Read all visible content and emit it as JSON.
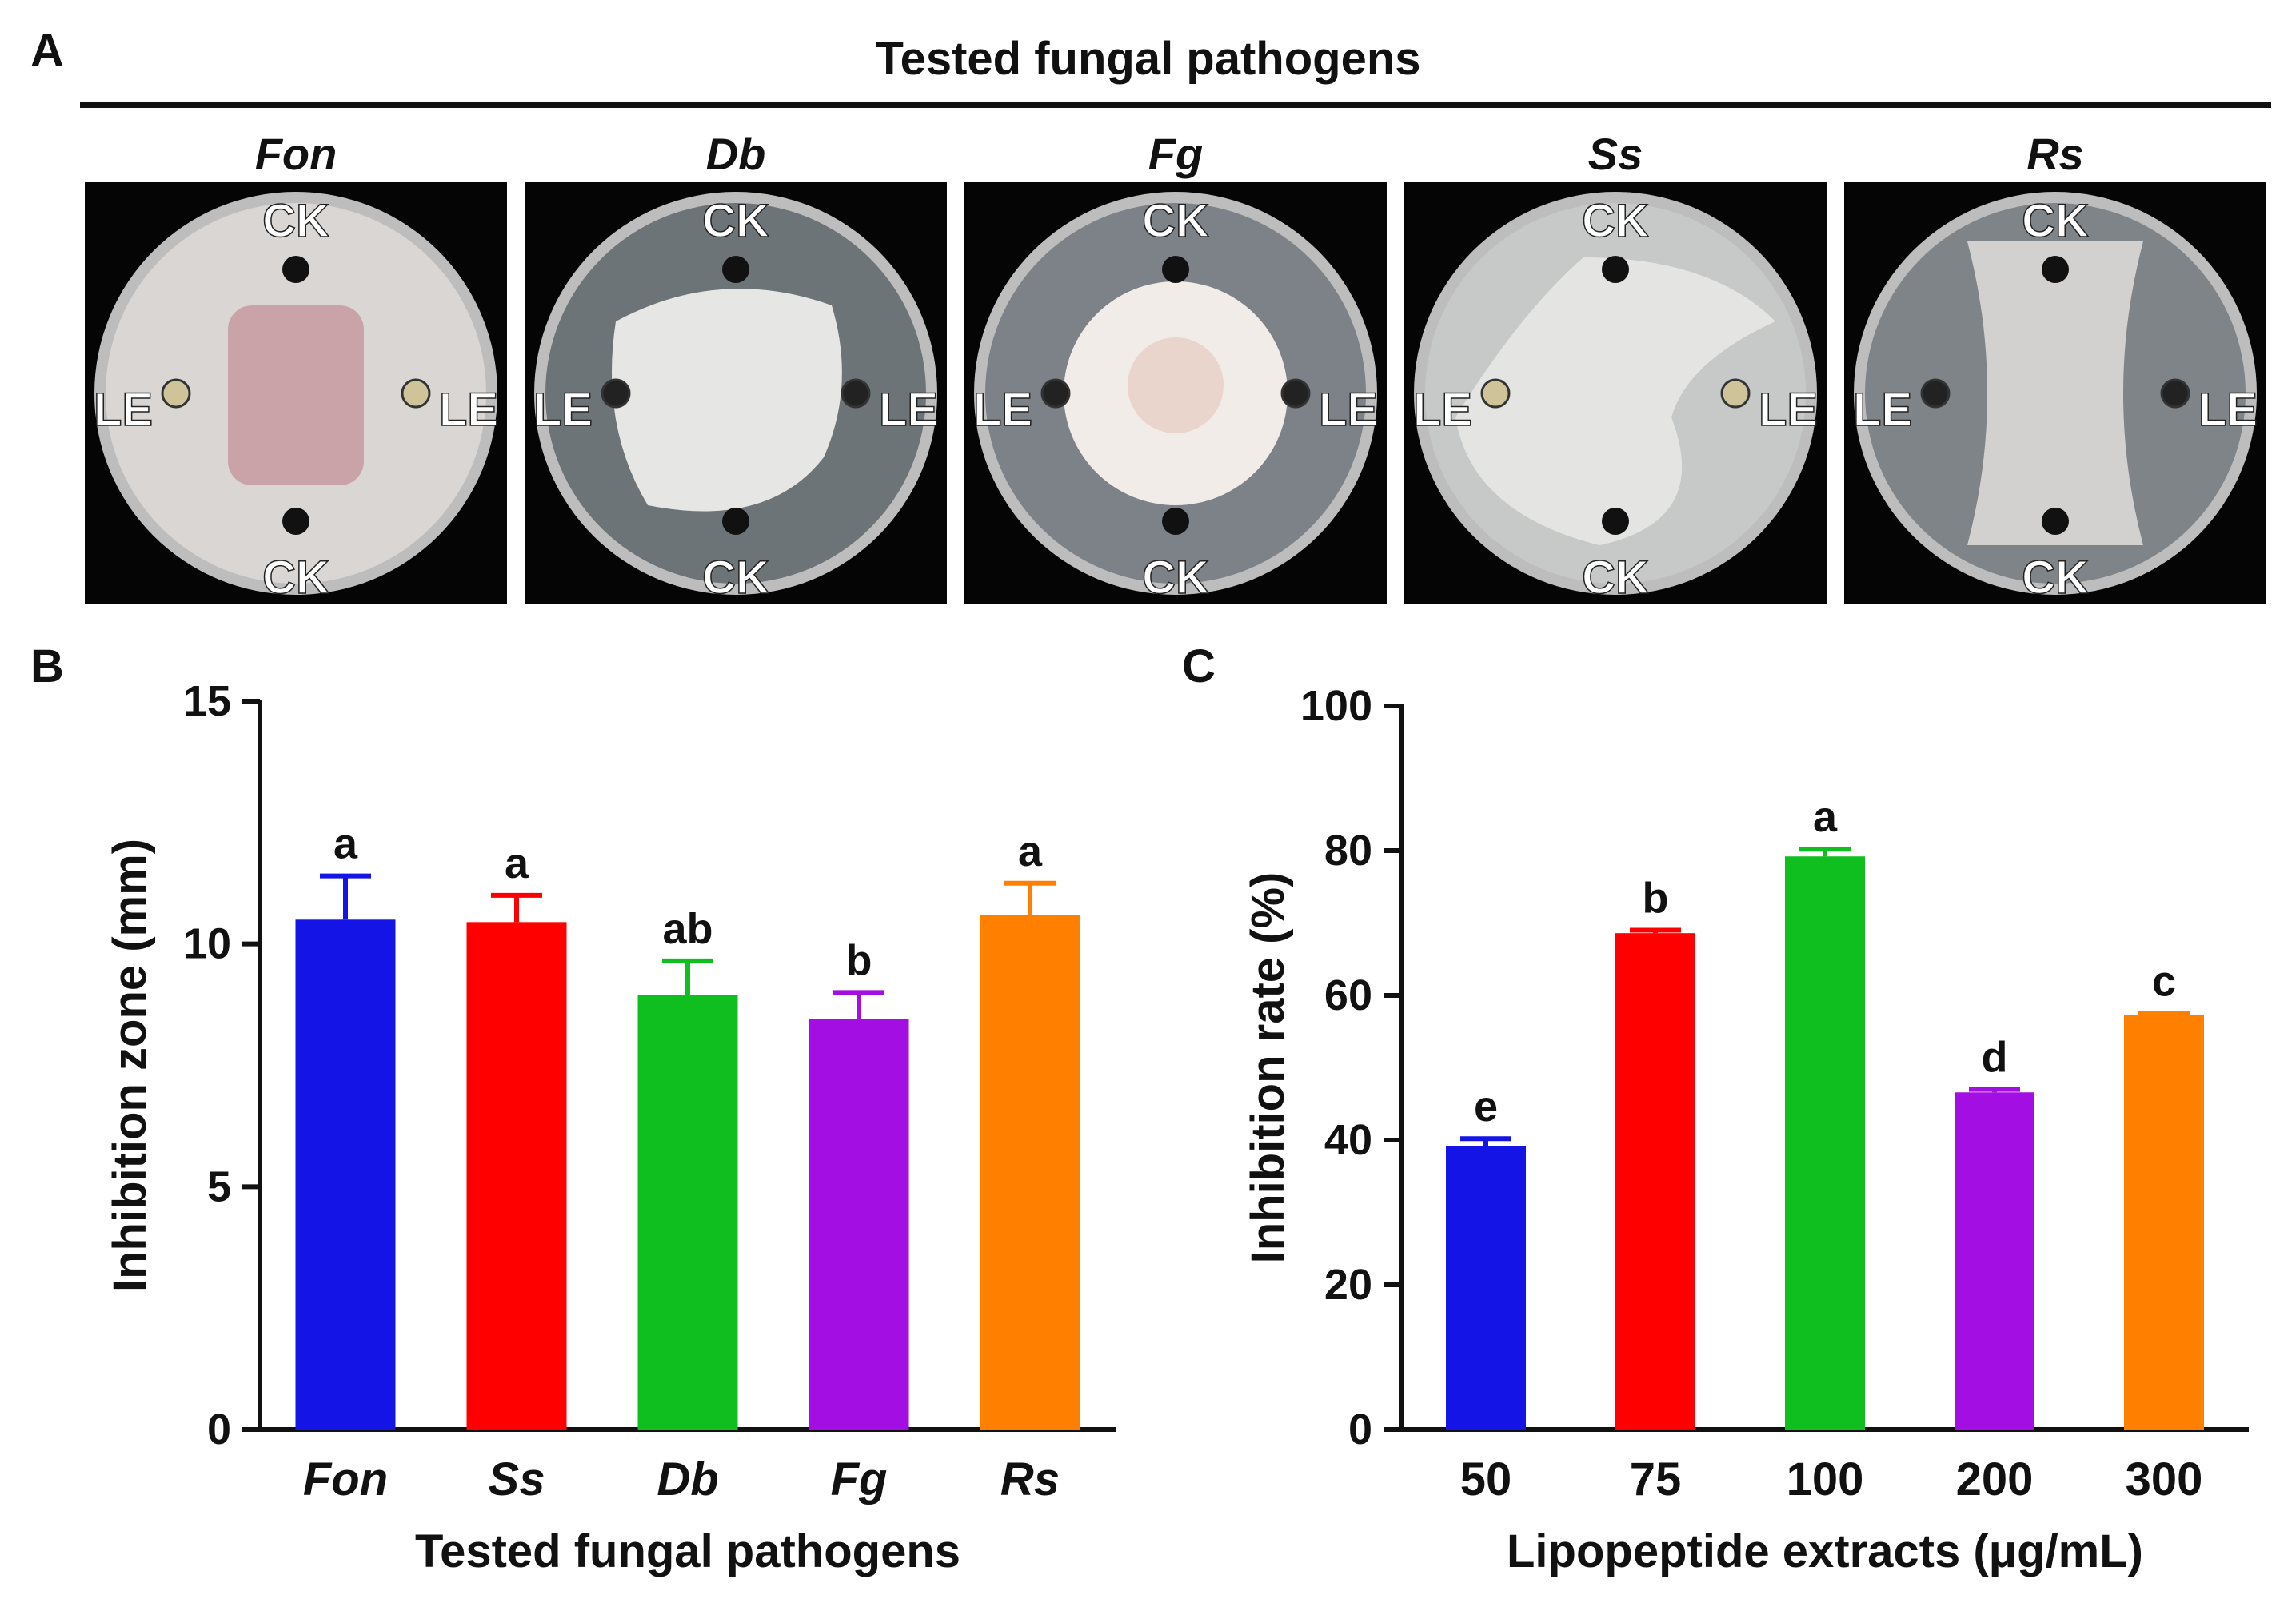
{
  "panel_a": {
    "letter": "A",
    "title": "Tested fungal pathogens",
    "plates": [
      {
        "name": "Fon",
        "top_label": "CK",
        "bottom_label": "CK",
        "left_label": "LE",
        "right_label": "LE",
        "agar_color": "#d9d6d4",
        "colony_color": "#c9a3a8",
        "colony_shape": "rect"
      },
      {
        "name": "Db",
        "top_label": "CK",
        "bottom_label": "CK",
        "left_label": "LE",
        "right_label": "LE",
        "agar_color": "#6d7478",
        "colony_color": "#e6e6e4",
        "colony_shape": "blob"
      },
      {
        "name": "Fg",
        "top_label": "CK",
        "bottom_label": "CK",
        "left_label": "LE",
        "right_label": "LE",
        "agar_color": "#7c8287",
        "colony_color": "#f1ece8",
        "colony_shape": "round"
      },
      {
        "name": "Ss",
        "top_label": "CK",
        "bottom_label": "CK",
        "left_label": "LE",
        "right_label": "LE",
        "agar_color": "#c7c9c9",
        "colony_color": "#e4e4e2",
        "colony_shape": "spread"
      },
      {
        "name": "Rs",
        "top_label": "CK",
        "bottom_label": "CK",
        "left_label": "LE",
        "right_label": "LE",
        "agar_color": "#7f8488",
        "colony_color": "#d2d1cf",
        "colony_shape": "hourglass"
      }
    ]
  },
  "chart_data": [
    {
      "type": "bar",
      "panel": "B",
      "title": "",
      "categories": [
        "Fon",
        "Ss",
        "Db",
        "Fg",
        "Rs"
      ],
      "values": [
        10.5,
        10.45,
        8.95,
        8.45,
        10.6
      ],
      "errors": [
        0.9,
        0.55,
        0.7,
        0.55,
        0.65
      ],
      "significance": [
        "a",
        "a",
        "ab",
        "b",
        "a"
      ],
      "colors": [
        "#1414e6",
        "#ff0000",
        "#0fbf1f",
        "#a30ee3",
        "#ff7f00"
      ],
      "xlabel": "Tested fungal pathogens",
      "ylabel": "Inhibition zone (mm)",
      "ylim": [
        0,
        15
      ],
      "yticks": [
        0,
        5,
        10,
        15
      ],
      "ytick_labels": [
        "0",
        "5",
        "10",
        "15"
      ],
      "grid": false,
      "category_style": "italic"
    },
    {
      "type": "bar",
      "panel": "C",
      "title": "",
      "categories": [
        "50",
        "75",
        "100",
        "200",
        "300"
      ],
      "values": [
        39.2,
        68.6,
        79.2,
        46.6,
        57.3
      ],
      "errors": [
        1.0,
        0.4,
        1.0,
        0.4,
        0.2
      ],
      "significance": [
        "e",
        "b",
        "a",
        "d",
        "c"
      ],
      "colors": [
        "#1414e6",
        "#ff0000",
        "#0fbf1f",
        "#a30ee3",
        "#ff7f00"
      ],
      "xlabel": "Lipopeptide extracts (μg/mL)",
      "ylabel": "Inhibition rate (%)",
      "ylim": [
        0,
        100
      ],
      "yticks": [
        0,
        20,
        40,
        60,
        80,
        100
      ],
      "ytick_labels": [
        "0",
        "20",
        "40",
        "60",
        "80",
        "100"
      ],
      "grid": false,
      "category_style": "normal"
    }
  ]
}
